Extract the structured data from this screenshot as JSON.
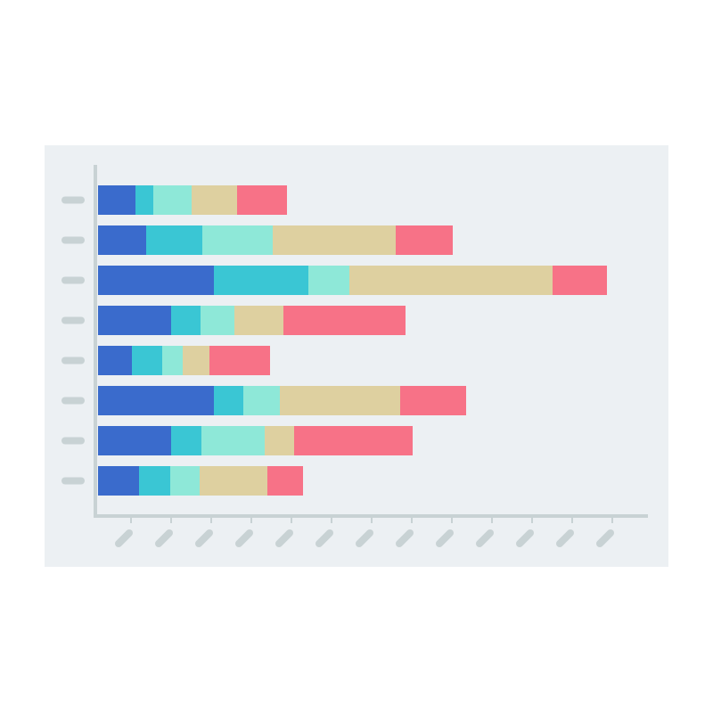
{
  "chart_data": {
    "type": "stacked-bar-horizontal",
    "categories": [
      null,
      null,
      null,
      null,
      null,
      null,
      null,
      null
    ],
    "series": [
      {
        "color": "#3a6bcc",
        "values": [
          42,
          54,
          130,
          82,
          38,
          130,
          82,
          46
        ]
      },
      {
        "color": "#3ac6d4",
        "values": [
          20,
          63,
          106,
          33,
          34,
          33,
          34,
          35
        ]
      },
      {
        "color": "#8ee8d8",
        "values": [
          43,
          79,
          46,
          38,
          23,
          41,
          71,
          33
        ]
      },
      {
        "color": "#ded0a0",
        "values": [
          51,
          138,
          228,
          55,
          30,
          135,
          33,
          76
        ]
      },
      {
        "color": "#f77287",
        "values": [
          56,
          64,
          61,
          137,
          68,
          74,
          133,
          40
        ]
      }
    ],
    "xlim": [
      0,
      616
    ],
    "xticks": [
      37,
      82,
      127,
      172,
      217,
      262,
      307,
      352,
      397,
      442,
      487,
      532,
      577
    ],
    "grid": false
  }
}
